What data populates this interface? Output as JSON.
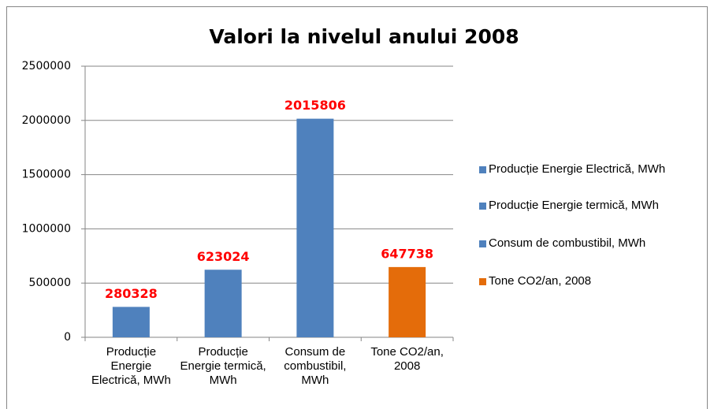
{
  "chart_data": {
    "type": "bar",
    "title": "Valori la nivelul anului 2008",
    "categories": [
      "Producție Energie Electrică, MWh",
      "Producție Energie termică, MWh",
      "Consum de combustibil, MWh",
      "Tone CO2/an, 2008"
    ],
    "series": [
      {
        "name": "Producție Energie Electrică, MWh",
        "color": "#4f81bd",
        "values": [
          280328,
          null,
          null,
          null
        ]
      },
      {
        "name": "Producție Energie termică, MWh",
        "color": "#4f81bd",
        "values": [
          null,
          623024,
          null,
          null
        ]
      },
      {
        "name": "Consum de combustibil, MWh",
        "color": "#4f81bd",
        "values": [
          null,
          null,
          2015806,
          null
        ]
      },
      {
        "name": "Tone CO2/an, 2008",
        "color": "#e46c0a",
        "values": [
          null,
          null,
          null,
          647738
        ]
      }
    ],
    "ylim": [
      0,
      2500000
    ],
    "yticks": [
      0,
      500000,
      1000000,
      1500000,
      2000000,
      2500000
    ],
    "grid": true,
    "legend": "right",
    "value_label_color": "#ff0000"
  }
}
